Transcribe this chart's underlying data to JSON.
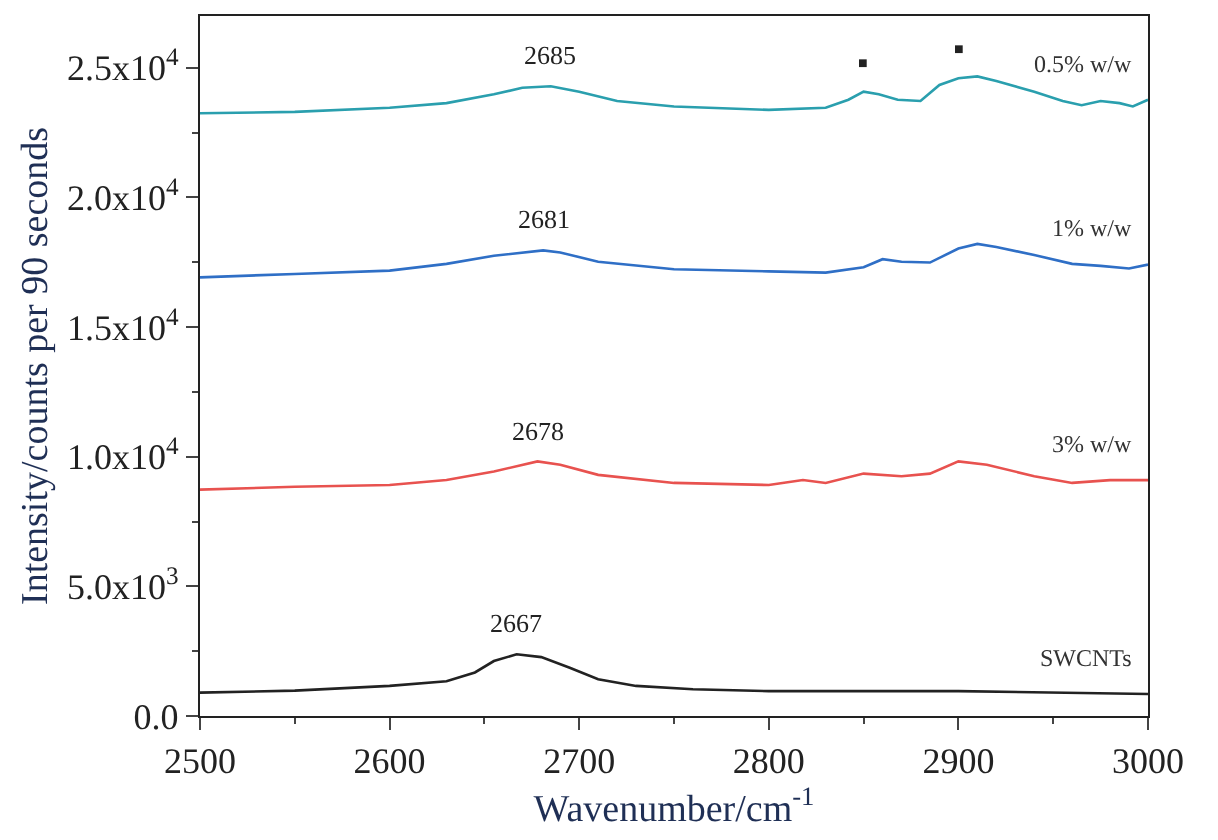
{
  "chart_data": {
    "type": "line",
    "xlabel": "Wavenumber/cm$^{-1}$",
    "ylabel": "Intensity/counts per 90 seconds",
    "xlim": [
      2500,
      3000
    ],
    "xticks": [
      2500,
      2600,
      2700,
      2800,
      2900,
      3000
    ],
    "ylim": [
      0,
      27000
    ],
    "yticks": [
      {
        "value": 0,
        "label": "0.0"
      },
      {
        "value": 5000,
        "label": "5.0x10$^{3}$"
      },
      {
        "value": 10000,
        "label": "1.0x10$^{4}$"
      },
      {
        "value": 15000,
        "label": "1.5x10$^{4}$"
      },
      {
        "value": 20000,
        "label": "2.0x10$^{4}$"
      },
      {
        "value": 25000,
        "label": "2.5x10$^{4}$"
      }
    ],
    "legend": false,
    "marker": "none",
    "line_style": "solid",
    "series": [
      {
        "name": "0.5% w/w",
        "color": "#2a9fae",
        "x": [
          2500,
          2550,
          2600,
          2630,
          2655,
          2670,
          2685,
          2700,
          2720,
          2750,
          2800,
          2830,
          2842,
          2850,
          2858,
          2868,
          2880,
          2890,
          2900,
          2910,
          2920,
          2940,
          2955,
          2965,
          2975,
          2985,
          2992,
          3000
        ],
        "values": [
          23250,
          23300,
          23460,
          23640,
          23980,
          24230,
          24290,
          24080,
          23720,
          23510,
          23380,
          23460,
          23770,
          24080,
          23980,
          23770,
          23720,
          24340,
          24600,
          24670,
          24490,
          24080,
          23720,
          23560,
          23720,
          23640,
          23510,
          23770
        ]
      },
      {
        "name": "1% w/w",
        "color": "#2f6fc6",
        "x": [
          2500,
          2550,
          2600,
          2630,
          2655,
          2681,
          2690,
          2710,
          2750,
          2800,
          2830,
          2850,
          2860,
          2870,
          2885,
          2900,
          2910,
          2920,
          2940,
          2960,
          2975,
          2990,
          3000
        ],
        "values": [
          16920,
          17050,
          17180,
          17440,
          17750,
          17960,
          17880,
          17520,
          17230,
          17150,
          17100,
          17310,
          17620,
          17520,
          17490,
          18030,
          18210,
          18090,
          17780,
          17440,
          17360,
          17260,
          17410
        ]
      },
      {
        "name": "3% w/w",
        "color": "#e8524f",
        "x": [
          2500,
          2550,
          2600,
          2630,
          2655,
          2678,
          2690,
          2710,
          2750,
          2800,
          2818,
          2830,
          2850,
          2870,
          2885,
          2900,
          2915,
          2940,
          2960,
          2980,
          3000
        ],
        "values": [
          8730,
          8840,
          8910,
          9100,
          9430,
          9820,
          9690,
          9300,
          8990,
          8910,
          9100,
          8990,
          9350,
          9250,
          9350,
          9820,
          9690,
          9250,
          8990,
          9100,
          9100
        ]
      },
      {
        "name": "SWCNTs",
        "color": "#222222",
        "x": [
          2500,
          2550,
          2600,
          2630,
          2645,
          2655,
          2667,
          2680,
          2695,
          2710,
          2730,
          2760,
          2800,
          2900,
          3000
        ],
        "values": [
          900,
          980,
          1160,
          1340,
          1680,
          2120,
          2380,
          2270,
          1860,
          1420,
          1160,
          1030,
          960,
          960,
          850
        ]
      }
    ],
    "annotations": [
      {
        "text": "2685",
        "x": 2685,
        "y": 24290
      },
      {
        "text": "2681",
        "x": 2681,
        "y": 17960
      },
      {
        "text": "2678",
        "x": 2678,
        "y": 9820
      },
      {
        "text": "2667",
        "x": 2667,
        "y": 2380
      },
      {
        "text": "■",
        "x": 2850,
        "y": 24080
      },
      {
        "text": "■",
        "x": 2900,
        "y": 24600
      }
    ]
  }
}
